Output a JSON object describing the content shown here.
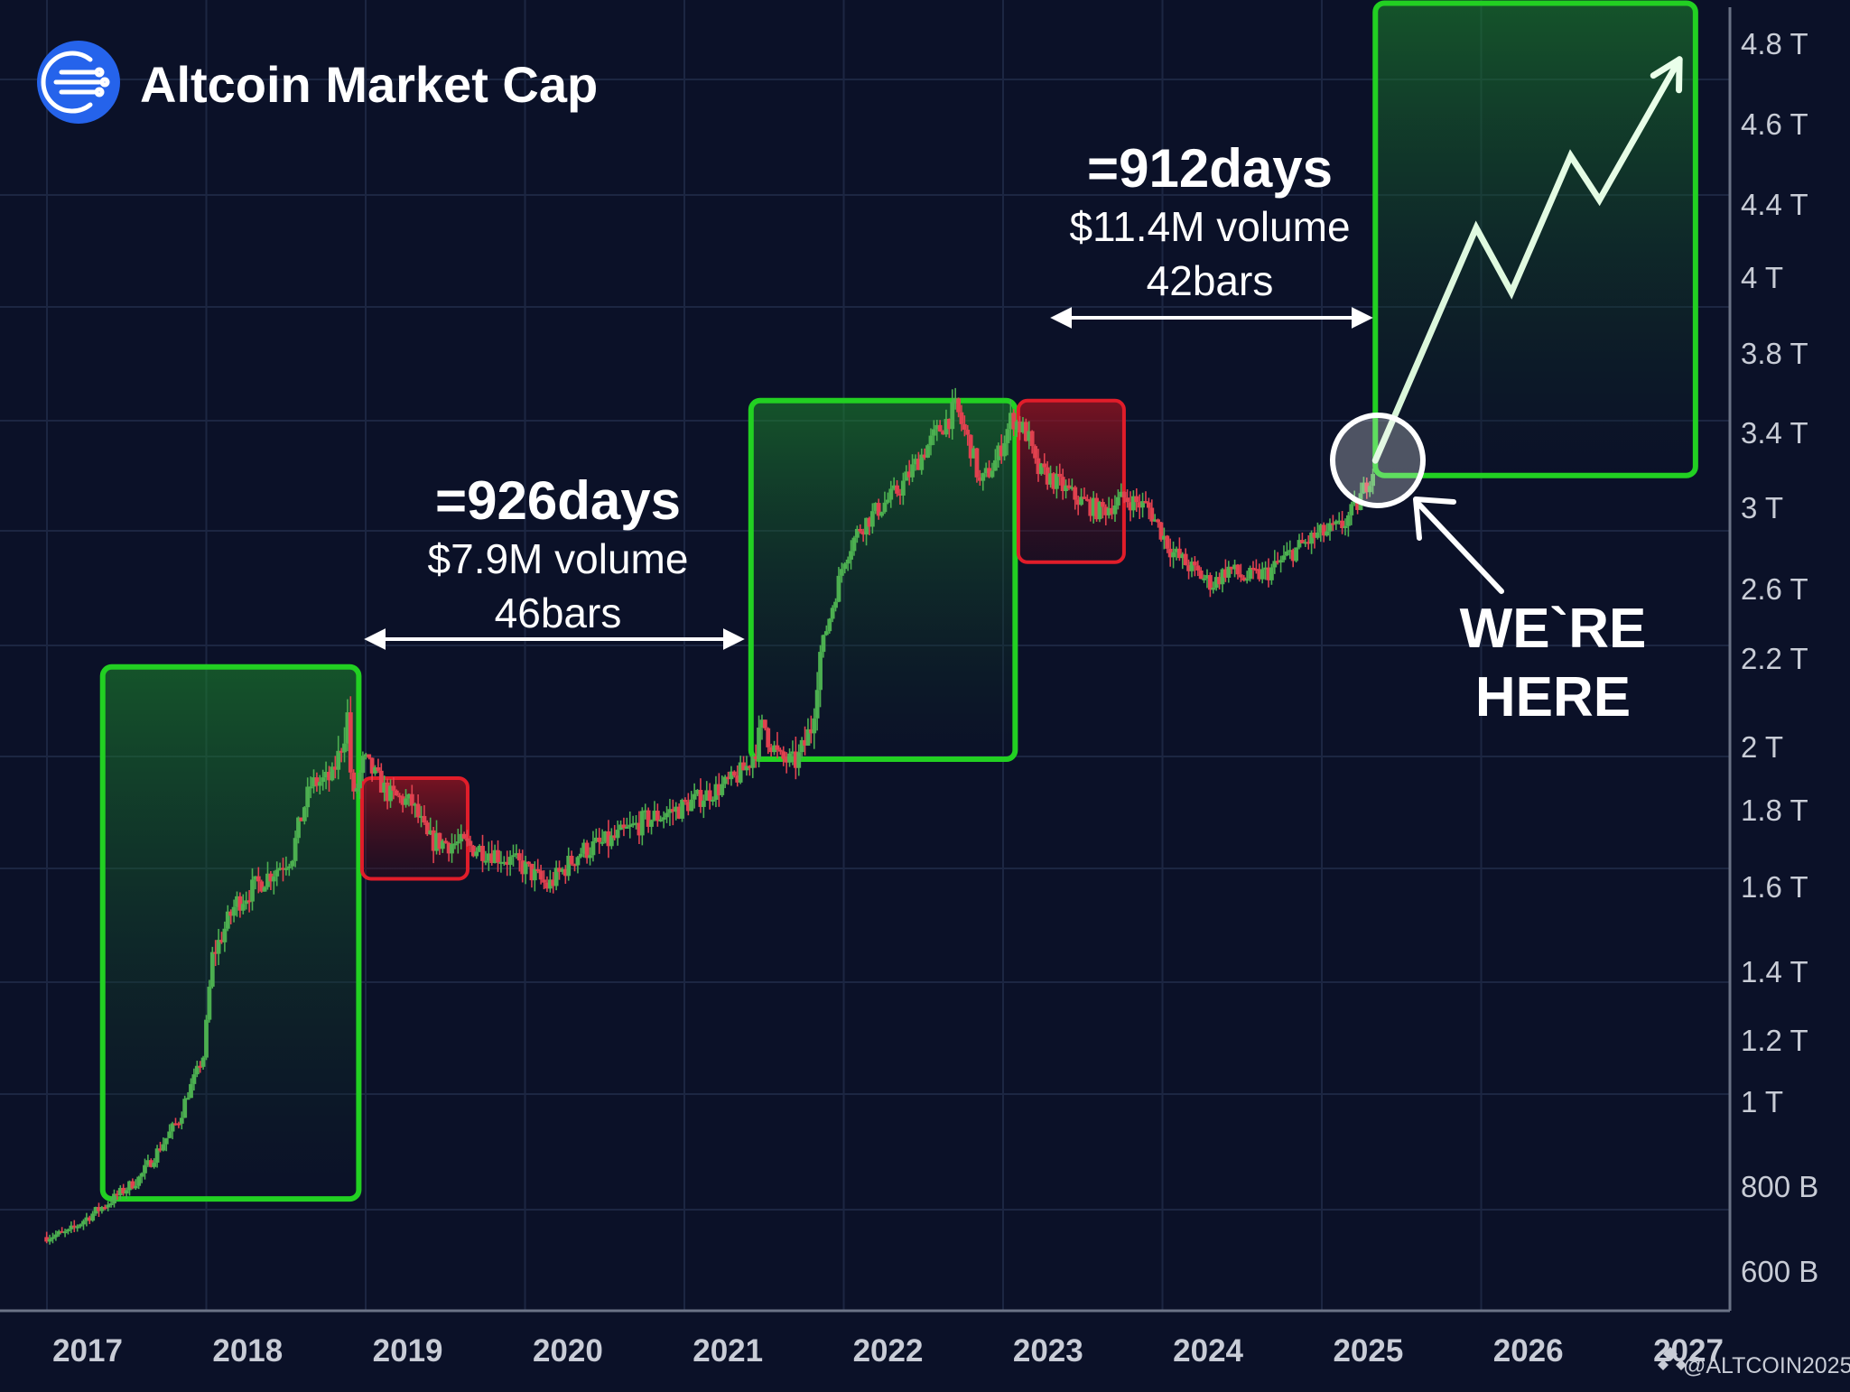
{
  "header": {
    "title": "Altcoin Market Cap"
  },
  "watermark": "@ALTCOIN2025",
  "colors": {
    "background": "#0b1128",
    "grid": "#1c2642",
    "bull": "#4caf50",
    "bear": "#e0414f",
    "box_green": "#22d022",
    "box_red": "#e11d2a",
    "logo": "#2563eb",
    "text": "#ffffff",
    "axis_text": "#c8ccd6"
  },
  "annotations": {
    "cycle1": {
      "days": "=926days",
      "volume": "$7.9M volume",
      "bars": "46bars"
    },
    "cycle2": {
      "days": "=912days",
      "volume": "$11.4M volume",
      "bars": "42bars"
    },
    "here_line1": "WE`RE",
    "here_line2": "HERE"
  },
  "chart_data": {
    "type": "candlestick",
    "title": "Altcoin Market Cap",
    "y_scale": "non-uniform",
    "y_ticks": [
      {
        "value": 600000000000,
        "label": "600 B"
      },
      {
        "value": 800000000000,
        "label": "800 B"
      },
      {
        "value": 1000000000000,
        "label": "1 T"
      },
      {
        "value": 1200000000000,
        "label": "1.2 T"
      },
      {
        "value": 1400000000000,
        "label": "1.4 T"
      },
      {
        "value": 1600000000000,
        "label": "1.6 T"
      },
      {
        "value": 1800000000000,
        "label": "1.8 T"
      },
      {
        "value": 2000000000000,
        "label": "2 T"
      },
      {
        "value": 2200000000000,
        "label": "2.2 T"
      },
      {
        "value": 2600000000000,
        "label": "2.6 T"
      },
      {
        "value": 3000000000000,
        "label": "3 T"
      },
      {
        "value": 3400000000000,
        "label": "3.4 T"
      },
      {
        "value": 3800000000000,
        "label": "3.8 T"
      },
      {
        "value": 4000000000000,
        "label": "4 T"
      },
      {
        "value": 4400000000000,
        "label": "4.4 T"
      },
      {
        "value": 4600000000000,
        "label": "4.6 T"
      },
      {
        "value": 4800000000000,
        "label": "4.8 T"
      }
    ],
    "x_ticks": [
      "2017",
      "2018",
      "2019",
      "2020",
      "2021",
      "2022",
      "2023",
      "2024",
      "2025",
      "2026",
      "2027"
    ],
    "xlim": [
      2016.75,
      2027.3
    ],
    "grid": true,
    "path": [
      [
        2016.75,
        680000000000
      ],
      [
        2016.9,
        690000000000
      ],
      [
        2017.0,
        720000000000
      ],
      [
        2017.15,
        760000000000
      ],
      [
        2017.35,
        820000000000
      ],
      [
        2017.6,
        960000000000
      ],
      [
        2017.75,
        1150000000000
      ],
      [
        2017.8,
        1430000000000
      ],
      [
        2017.95,
        1560000000000
      ],
      [
        2018.1,
        1610000000000
      ],
      [
        2018.3,
        1680000000000
      ],
      [
        2018.42,
        1880000000000
      ],
      [
        2018.55,
        1900000000000
      ],
      [
        2018.65,
        2070000000000
      ],
      [
        2018.68,
        1820000000000
      ],
      [
        2018.75,
        1960000000000
      ],
      [
        2018.9,
        1850000000000
      ],
      [
        2019.05,
        1820000000000
      ],
      [
        2019.15,
        1720000000000
      ],
      [
        2019.35,
        1710000000000
      ],
      [
        2019.55,
        1690000000000
      ],
      [
        2019.75,
        1650000000000
      ],
      [
        2019.9,
        1600000000000
      ],
      [
        2020.1,
        1690000000000
      ],
      [
        2020.3,
        1720000000000
      ],
      [
        2020.5,
        1770000000000
      ],
      [
        2020.7,
        1800000000000
      ],
      [
        2020.9,
        1850000000000
      ],
      [
        2021.05,
        1890000000000
      ],
      [
        2021.15,
        1940000000000
      ],
      [
        2021.25,
        2050000000000
      ],
      [
        2021.35,
        1960000000000
      ],
      [
        2021.45,
        1950000000000
      ],
      [
        2021.55,
        2050000000000
      ],
      [
        2021.65,
        2400000000000
      ],
      [
        2021.75,
        2750000000000
      ],
      [
        2021.85,
        2900000000000
      ],
      [
        2021.95,
        2980000000000
      ],
      [
        2022.1,
        3100000000000
      ],
      [
        2022.25,
        3300000000000
      ],
      [
        2022.35,
        3420000000000
      ],
      [
        2022.45,
        3520000000000
      ],
      [
        2022.55,
        3300000000000
      ],
      [
        2022.6,
        3120000000000
      ],
      [
        2022.7,
        3250000000000
      ],
      [
        2022.8,
        3480000000000
      ],
      [
        2022.9,
        3380000000000
      ],
      [
        2022.95,
        3200000000000
      ],
      [
        2023.05,
        3150000000000
      ],
      [
        2023.2,
        3050000000000
      ],
      [
        2023.35,
        2980000000000
      ],
      [
        2023.5,
        3050000000000
      ],
      [
        2023.65,
        3000000000000
      ],
      [
        2023.8,
        2780000000000
      ],
      [
        2023.95,
        2680000000000
      ],
      [
        2024.05,
        2620000000000
      ],
      [
        2024.15,
        2700000000000
      ],
      [
        2024.25,
        2650000000000
      ],
      [
        2024.4,
        2680000000000
      ],
      [
        2024.55,
        2780000000000
      ],
      [
        2024.7,
        2860000000000
      ],
      [
        2024.85,
        2900000000000
      ],
      [
        2024.95,
        3000000000000
      ],
      [
        2025.0,
        3100000000000
      ],
      [
        2025.05,
        3200000000000
      ]
    ],
    "projection": [
      [
        2025.05,
        3250000000000
      ],
      [
        2025.68,
        4270000000000
      ],
      [
        2025.9,
        3960000000000
      ],
      [
        2026.27,
        4520000000000
      ],
      [
        2026.45,
        4410000000000
      ],
      [
        2026.95,
        4760000000000
      ]
    ],
    "zones": [
      {
        "kind": "bull",
        "x0": 2017.1,
        "x1": 2018.7,
        "top": 2180000000000,
        "bottom": 770000000000
      },
      {
        "kind": "bear",
        "x0": 2018.72,
        "x1": 2019.38,
        "top": 1900000000000,
        "bottom": 1620000000000
      },
      {
        "kind": "bull",
        "x0": 2021.15,
        "x1": 2022.8,
        "top": 3560000000000,
        "bottom": 1960000000000
      },
      {
        "kind": "bear",
        "x0": 2022.82,
        "x1": 2023.48,
        "top": 3560000000000,
        "bottom": 2730000000000
      },
      {
        "kind": "bull",
        "x0": 2025.05,
        "x1": 2027.05,
        "top": 4900000000000,
        "bottom": 3170000000000
      }
    ]
  }
}
